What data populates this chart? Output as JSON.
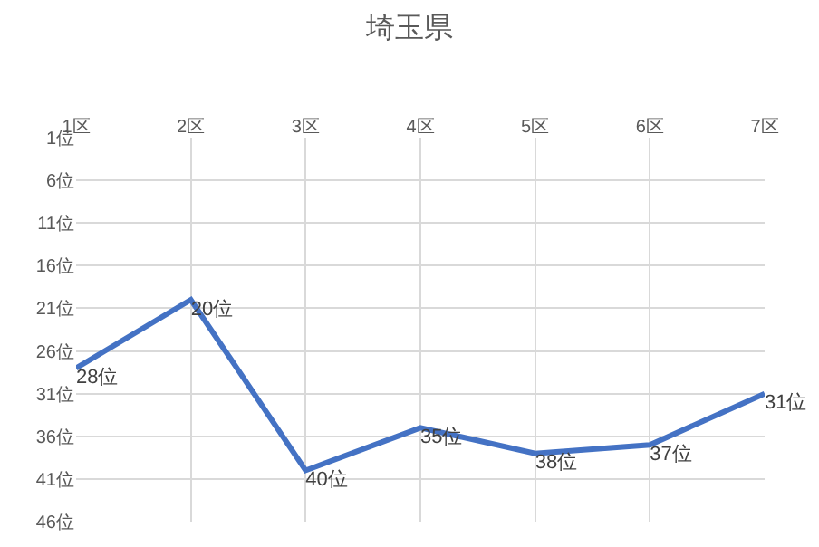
{
  "chart_data": {
    "type": "line",
    "title": "埼玉県",
    "categories": [
      "1区",
      "2区",
      "3区",
      "4区",
      "5区",
      "6区",
      "7区"
    ],
    "values": [
      28,
      20,
      40,
      35,
      38,
      37,
      31
    ],
    "value_labels": [
      "28位",
      "20位",
      "40位",
      "35位",
      "38位",
      "37位",
      "31位"
    ],
    "color": "#4472c4",
    "ylim": [
      46,
      1
    ],
    "yticks": [
      {
        "value": 1,
        "label": "1位"
      },
      {
        "value": 6,
        "label": "6位"
      },
      {
        "value": 11,
        "label": "11位"
      },
      {
        "value": 16,
        "label": "16位"
      },
      {
        "value": 21,
        "label": "21位"
      },
      {
        "value": 26,
        "label": "26位"
      },
      {
        "value": 31,
        "label": "31位"
      },
      {
        "value": 36,
        "label": "36位"
      },
      {
        "value": 41,
        "label": "41位"
      },
      {
        "value": 46,
        "label": "46位"
      }
    ],
    "grid": true
  }
}
